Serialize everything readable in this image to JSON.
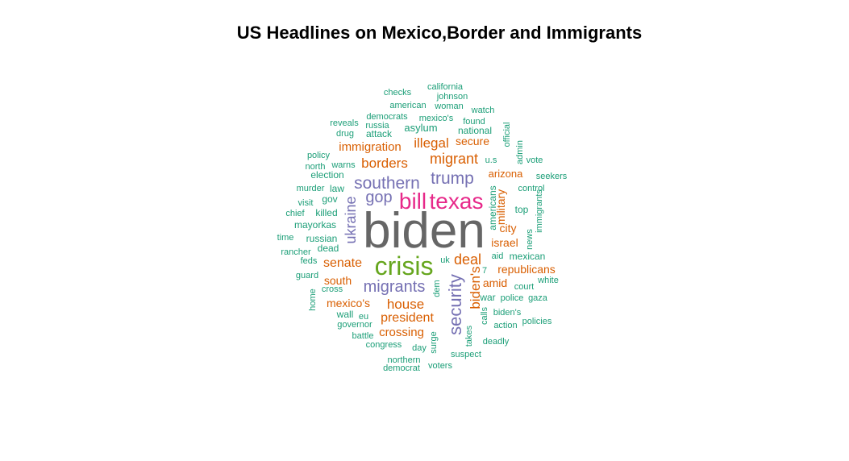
{
  "chart_data": {
    "type": "wordcloud",
    "title": "US Headlines on Mexico,Border and Immigrants",
    "colors": {
      "gray": "#666666",
      "green": "#66a61e",
      "pink": "#e7298a",
      "purple": "#7570b3",
      "orange": "#d95f02",
      "teal": "#1b9e77"
    },
    "words": [
      {
        "text": "biden",
        "tier": "gray"
      },
      {
        "text": "crisis",
        "tier": "green"
      },
      {
        "text": "texas",
        "tier": "pink"
      },
      {
        "text": "bill",
        "tier": "pink"
      },
      {
        "text": "southern",
        "tier": "purple"
      },
      {
        "text": "trump",
        "tier": "purple"
      },
      {
        "text": "security",
        "tier": "purple"
      },
      {
        "text": "migrants",
        "tier": "purple"
      },
      {
        "text": "gop",
        "tier": "purple"
      },
      {
        "text": "ukraine",
        "tier": "purple"
      },
      {
        "text": "migrant",
        "tier": "orange"
      },
      {
        "text": "borders",
        "tier": "orange"
      },
      {
        "text": "illegal",
        "tier": "orange"
      },
      {
        "text": "deal",
        "tier": "orange"
      },
      {
        "text": "biden's",
        "tier": "orange"
      },
      {
        "text": "house",
        "tier": "orange"
      },
      {
        "text": "president",
        "tier": "orange"
      },
      {
        "text": "senate",
        "tier": "orange"
      },
      {
        "text": "immigration",
        "tier": "orange"
      },
      {
        "text": "crossing",
        "tier": "orange"
      },
      {
        "text": "republicans",
        "tier": "orange"
      },
      {
        "text": "israel",
        "tier": "orange"
      },
      {
        "text": "arizona",
        "tier": "orange"
      },
      {
        "text": "amid",
        "tier": "orange"
      },
      {
        "text": "secure",
        "tier": "orange"
      },
      {
        "text": "mexico's",
        "tier": "orange"
      },
      {
        "text": "south",
        "tier": "orange"
      },
      {
        "text": "military",
        "tier": "orange"
      },
      {
        "text": "city",
        "tier": "orange"
      },
      {
        "text": "asylum",
        "tier": "teal"
      },
      {
        "text": "national",
        "tier": "teal"
      },
      {
        "text": "attack",
        "tier": "teal"
      },
      {
        "text": "russia",
        "tier": "teal"
      },
      {
        "text": "democrats",
        "tier": "teal"
      },
      {
        "text": "mexico's",
        "tier": "teal"
      },
      {
        "text": "found",
        "tier": "teal"
      },
      {
        "text": "watch",
        "tier": "teal"
      },
      {
        "text": "american",
        "tier": "teal"
      },
      {
        "text": "woman",
        "tier": "teal"
      },
      {
        "text": "johnson",
        "tier": "teal"
      },
      {
        "text": "california",
        "tier": "teal"
      },
      {
        "text": "checks",
        "tier": "teal"
      },
      {
        "text": "reveals",
        "tier": "teal"
      },
      {
        "text": "drug",
        "tier": "teal"
      },
      {
        "text": "policy",
        "tier": "teal"
      },
      {
        "text": "north",
        "tier": "teal"
      },
      {
        "text": "warns",
        "tier": "teal"
      },
      {
        "text": "election",
        "tier": "teal"
      },
      {
        "text": "law",
        "tier": "teal"
      },
      {
        "text": "murder",
        "tier": "teal"
      },
      {
        "text": "gov",
        "tier": "teal"
      },
      {
        "text": "visit",
        "tier": "teal"
      },
      {
        "text": "killed",
        "tier": "teal"
      },
      {
        "text": "chief",
        "tier": "teal"
      },
      {
        "text": "mayorkas",
        "tier": "teal"
      },
      {
        "text": "time",
        "tier": "teal"
      },
      {
        "text": "russian",
        "tier": "teal"
      },
      {
        "text": "dead",
        "tier": "teal"
      },
      {
        "text": "rancher",
        "tier": "teal"
      },
      {
        "text": "feds",
        "tier": "teal"
      },
      {
        "text": "guard",
        "tier": "teal"
      },
      {
        "text": "cross",
        "tier": "teal"
      },
      {
        "text": "home",
        "tier": "teal"
      },
      {
        "text": "wall",
        "tier": "teal"
      },
      {
        "text": "eu",
        "tier": "teal"
      },
      {
        "text": "governor",
        "tier": "teal"
      },
      {
        "text": "battle",
        "tier": "teal"
      },
      {
        "text": "congress",
        "tier": "teal"
      },
      {
        "text": "day",
        "tier": "teal"
      },
      {
        "text": "northern",
        "tier": "teal"
      },
      {
        "text": "democrat",
        "tier": "teal"
      },
      {
        "text": "voters",
        "tier": "teal"
      },
      {
        "text": "suspect",
        "tier": "teal"
      },
      {
        "text": "surge",
        "tier": "teal"
      },
      {
        "text": "takes",
        "tier": "teal"
      },
      {
        "text": "calls",
        "tier": "teal"
      },
      {
        "text": "dem",
        "tier": "teal"
      },
      {
        "text": "uk",
        "tier": "teal"
      },
      {
        "text": "7",
        "tier": "teal"
      },
      {
        "text": "war",
        "tier": "teal"
      },
      {
        "text": "police",
        "tier": "teal"
      },
      {
        "text": "gaza",
        "tier": "teal"
      },
      {
        "text": "biden's",
        "tier": "teal"
      },
      {
        "text": "action",
        "tier": "teal"
      },
      {
        "text": "policies",
        "tier": "teal"
      },
      {
        "text": "deadly",
        "tier": "teal"
      },
      {
        "text": "court",
        "tier": "teal"
      },
      {
        "text": "white",
        "tier": "teal"
      },
      {
        "text": "mexican",
        "tier": "teal"
      },
      {
        "text": "aid",
        "tier": "teal"
      },
      {
        "text": "news",
        "tier": "teal"
      },
      {
        "text": "immigrants",
        "tier": "teal"
      },
      {
        "text": "top",
        "tier": "teal"
      },
      {
        "text": "americans",
        "tier": "teal"
      },
      {
        "text": "control",
        "tier": "teal"
      },
      {
        "text": "seekers",
        "tier": "teal"
      },
      {
        "text": "vote",
        "tier": "teal"
      },
      {
        "text": "admin",
        "tier": "teal"
      },
      {
        "text": "official",
        "tier": "teal"
      },
      {
        "text": "u.s",
        "tier": "teal"
      }
    ]
  }
}
